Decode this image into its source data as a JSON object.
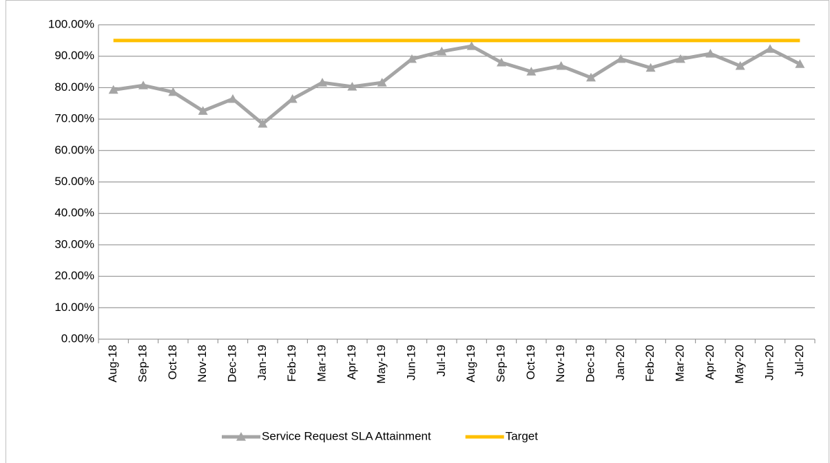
{
  "chart_data": {
    "type": "line",
    "categories": [
      "Aug-18",
      "Sep-18",
      "Oct-18",
      "Nov-18",
      "Dec-18",
      "Jan-19",
      "Feb-19",
      "Mar-19",
      "Apr-19",
      "May-19",
      "Jun-19",
      "Jul-19",
      "Aug-19",
      "Sep-19",
      "Oct-19",
      "Nov-19",
      "Dec-19",
      "Jan-20",
      "Feb-20",
      "Mar-20",
      "Apr-20",
      "May-20",
      "Jun-20",
      "Jul-20"
    ],
    "series": [
      {
        "name": "Service Request SLA Attainment",
        "color": "#a5a5a5",
        "marker": "triangle",
        "values": [
          79.3,
          80.7,
          78.6,
          72.6,
          76.4,
          68.5,
          76.4,
          81.6,
          80.3,
          81.6,
          89.1,
          91.5,
          93.2,
          88.0,
          85.1,
          86.9,
          83.2,
          89.1,
          86.3,
          89.1,
          90.8,
          86.9,
          92.3,
          87.5
        ]
      },
      {
        "name": "Target",
        "color": "#ffc000",
        "values": [
          95,
          95,
          95,
          95,
          95,
          95,
          95,
          95,
          95,
          95,
          95,
          95,
          95,
          95,
          95,
          95,
          95,
          95,
          95,
          95,
          95,
          95,
          95,
          95
        ]
      }
    ],
    "ylim": [
      0,
      100
    ],
    "yticks": [
      {
        "value": 0,
        "label": "0.00%"
      },
      {
        "value": 10,
        "label": "10.00%"
      },
      {
        "value": 20,
        "label": "20.00%"
      },
      {
        "value": 30,
        "label": "30.00%"
      },
      {
        "value": 40,
        "label": "40.00%"
      },
      {
        "value": 50,
        "label": "50.00%"
      },
      {
        "value": 60,
        "label": "60.00%"
      },
      {
        "value": 70,
        "label": "70.00%"
      },
      {
        "value": 80,
        "label": "80.00%"
      },
      {
        "value": 90,
        "label": "90.00%"
      },
      {
        "value": 100,
        "label": "100.00%"
      }
    ],
    "grid": true,
    "legend": "bottom"
  }
}
